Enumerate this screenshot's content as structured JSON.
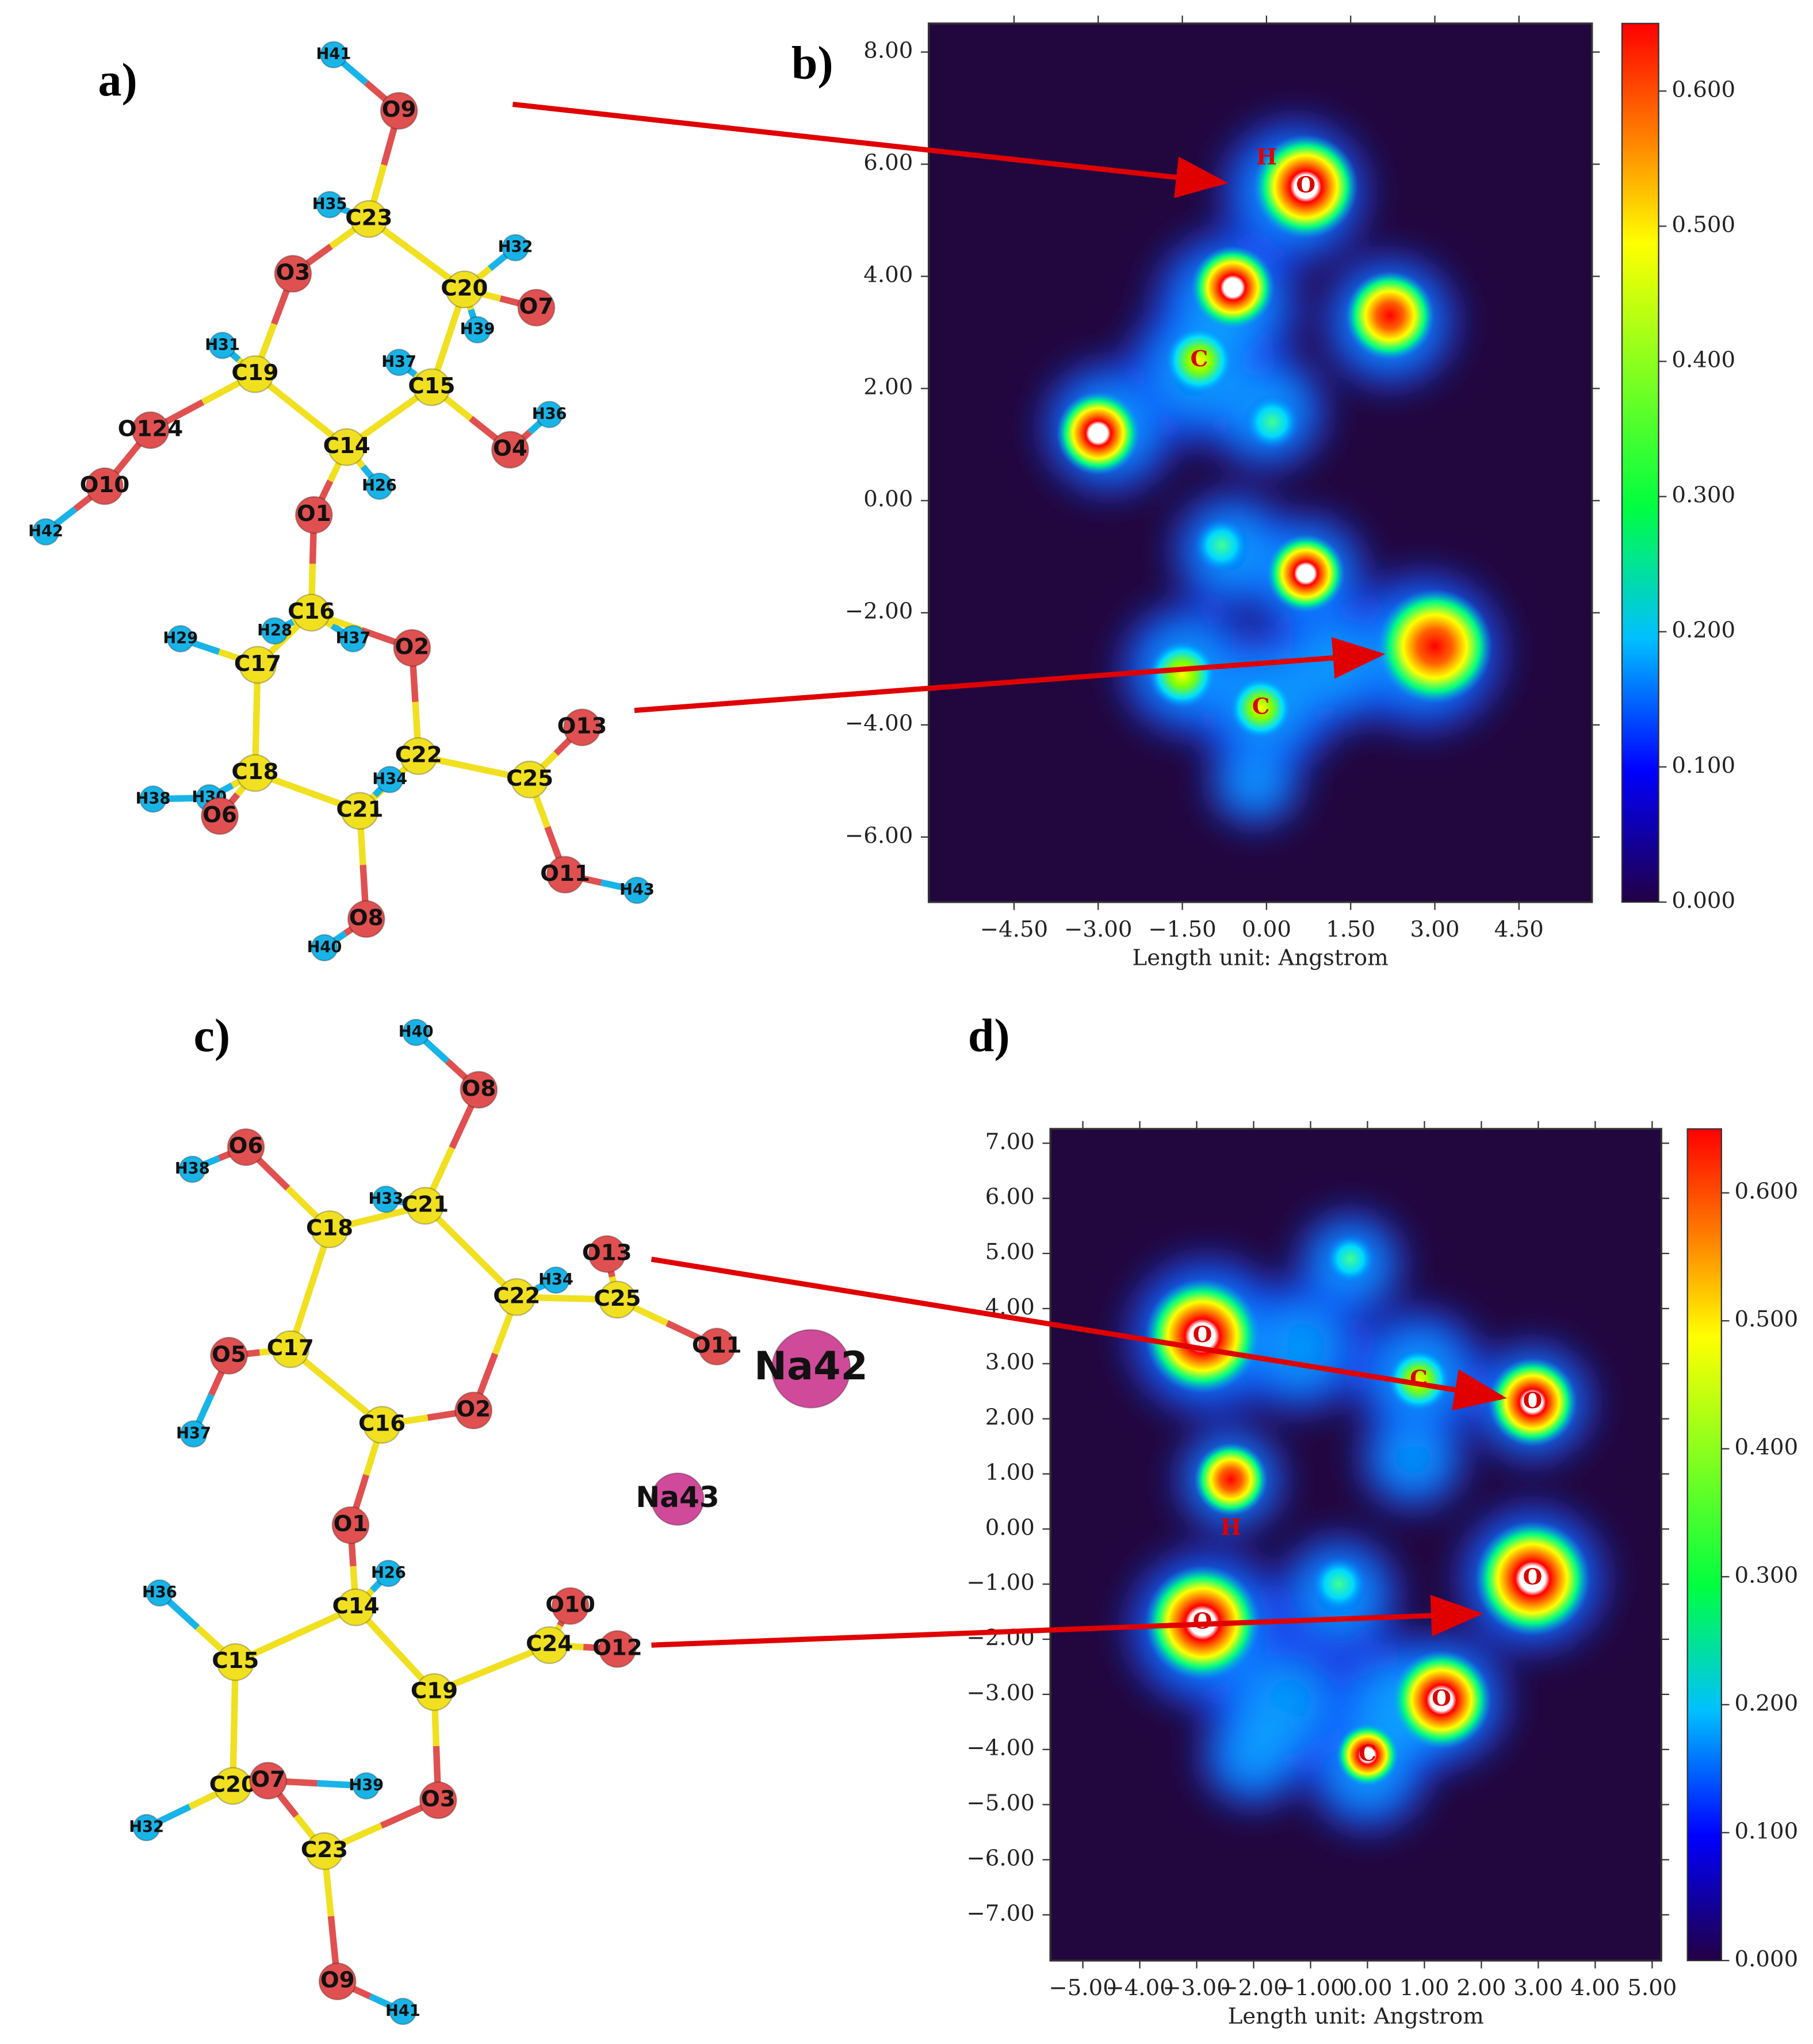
{
  "panels": {
    "a": {
      "label": "a)",
      "atoms": [
        "H41",
        "O9",
        "H35",
        "C23",
        "O3",
        "H32",
        "C20",
        "O7",
        "H39",
        "H31",
        "C19",
        "H37",
        "C15",
        "O124",
        "H36",
        "C14",
        "O4",
        "H26",
        "O10",
        "H42",
        "O1",
        "C16",
        "H29",
        "H28",
        "H37",
        "O2",
        "C17",
        "O13",
        "C22",
        "C18",
        "C25",
        "H38",
        "H30",
        "H34",
        "O6",
        "C21",
        "O11",
        "H43",
        "O8",
        "H40"
      ]
    },
    "b": {
      "label": "b)",
      "xlabel": "Length unit: Angstrom",
      "xlim": [
        -6.02,
        5.8
      ],
      "ylim": [
        -7.16,
        8.51
      ],
      "xticks": [
        {
          "value": -4.5,
          "label": "−4.50"
        },
        {
          "value": -3,
          "label": "−3.00"
        },
        {
          "value": -1.5,
          "label": "−1.50"
        },
        {
          "value": 0,
          "label": "0.00"
        },
        {
          "value": 1.5,
          "label": "1.50"
        },
        {
          "value": 3,
          "label": "3.00"
        },
        {
          "value": 4.5,
          "label": "4.50"
        }
      ],
      "yticks": [
        {
          "value": 8,
          "label": "8.00"
        },
        {
          "value": 6,
          "label": "6.00"
        },
        {
          "value": 4,
          "label": "4.00"
        },
        {
          "value": 2,
          "label": "2.00"
        },
        {
          "value": 0,
          "label": "0.00"
        },
        {
          "value": -2,
          "label": "−2.00"
        },
        {
          "value": -4,
          "label": "−4.00"
        },
        {
          "value": -6,
          "label": "−6.00"
        }
      ],
      "clim": [
        0,
        0.65
      ],
      "cticks": [
        {
          "value": 0,
          "label": "0.000"
        },
        {
          "value": 0.1,
          "label": "0.100"
        },
        {
          "value": 0.2,
          "label": "0.200"
        },
        {
          "value": 0.3,
          "label": "0.300"
        },
        {
          "value": 0.4,
          "label": "0.400"
        },
        {
          "value": 0.5,
          "label": "0.500"
        },
        {
          "value": 0.6,
          "label": "0.600"
        }
      ],
      "atom_labels": [
        "H",
        "O",
        "C",
        "C"
      ]
    },
    "c": {
      "label": "c)",
      "atoms": [
        "H40",
        "O8",
        "O6",
        "H38",
        "H33",
        "C21",
        "C18",
        "O13",
        "H34",
        "C22",
        "C25",
        "O5",
        "C17",
        "O11",
        "Na42",
        "C16",
        "O2",
        "H37",
        "Na43",
        "O1",
        "H36",
        "H26",
        "C14",
        "O10",
        "C24",
        "O12",
        "C15",
        "C19",
        "C20",
        "O7",
        "H39",
        "O3",
        "H32",
        "C23",
        "O9",
        "H41"
      ]
    },
    "d": {
      "label": "d)",
      "xlabel": "Length unit: Angstrom",
      "xlim": [
        -5.57,
        5.16
      ],
      "ylim": [
        -7.83,
        7.26
      ],
      "xticks": [
        {
          "value": -5,
          "label": "−5.00"
        },
        {
          "value": -4,
          "label": "−4.00"
        },
        {
          "value": -3,
          "label": "−3.00"
        },
        {
          "value": -2,
          "label": "−2.00"
        },
        {
          "value": -1,
          "label": "−1.00"
        },
        {
          "value": 0,
          "label": "0.00"
        },
        {
          "value": 1,
          "label": "1.00"
        },
        {
          "value": 2,
          "label": "2.00"
        },
        {
          "value": 3,
          "label": "3.00"
        },
        {
          "value": 4,
          "label": "4.00"
        },
        {
          "value": 5,
          "label": "5.00"
        }
      ],
      "yticks": [
        {
          "value": 7,
          "label": "7.00"
        },
        {
          "value": 6,
          "label": "6.00"
        },
        {
          "value": 5,
          "label": "5.00"
        },
        {
          "value": 4,
          "label": "4.00"
        },
        {
          "value": 3,
          "label": "3.00"
        },
        {
          "value": 2,
          "label": "2.00"
        },
        {
          "value": 1,
          "label": "1.00"
        },
        {
          "value": 0,
          "label": "0.00"
        },
        {
          "value": -1,
          "label": "−1.00"
        },
        {
          "value": -2,
          "label": "−2.00"
        },
        {
          "value": -3,
          "label": "−3.00"
        },
        {
          "value": -4,
          "label": "−4.00"
        },
        {
          "value": -5,
          "label": "−5.00"
        },
        {
          "value": -6,
          "label": "−6.00"
        },
        {
          "value": -7,
          "label": "−7.00"
        }
      ],
      "clim": [
        0,
        0.65
      ],
      "cticks": [
        {
          "value": 0,
          "label": "0.000"
        },
        {
          "value": 0.1,
          "label": "0.100"
        },
        {
          "value": 0.2,
          "label": "0.200"
        },
        {
          "value": 0.3,
          "label": "0.300"
        },
        {
          "value": 0.4,
          "label": "0.400"
        },
        {
          "value": 0.5,
          "label": "0.500"
        },
        {
          "value": 0.6,
          "label": "0.600"
        }
      ],
      "atom_labels": [
        "O",
        "C",
        "O",
        "H",
        "O",
        "O",
        "O",
        "C"
      ]
    }
  }
}
